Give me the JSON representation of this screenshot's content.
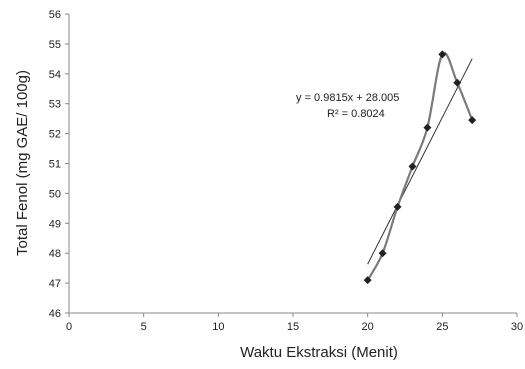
{
  "chart_data": {
    "type": "scatter",
    "title": "",
    "xlabel": "Waktu Ekstraksi (Menit)",
    "ylabel": "Total Fenol (mg GAE/ 100g)",
    "xlim": [
      0,
      30
    ],
    "ylim": [
      46,
      56
    ],
    "x_ticks": [
      0,
      5,
      10,
      15,
      20,
      25,
      30
    ],
    "y_ticks": [
      46,
      47,
      48,
      49,
      50,
      51,
      52,
      53,
      54,
      55,
      56
    ],
    "grid": false,
    "legend": "none",
    "series": [
      {
        "x": [
          20,
          21,
          22,
          23,
          24,
          25,
          26,
          27
        ],
        "y": [
          47.1,
          48.0,
          49.55,
          50.9,
          52.2,
          54.65,
          53.7,
          52.45
        ],
        "marker": "diamond",
        "line": "smooth",
        "color": "#7a7a7a",
        "marker_color": "#222222"
      }
    ],
    "trendline": {
      "slope": 0.9815,
      "intercept": 28.005,
      "x_range": [
        20,
        27
      ],
      "color": "#333333"
    },
    "annotations": {
      "equation": "y = 0.9815x + 28.005",
      "r_squared": "R² = 0.8024"
    }
  }
}
